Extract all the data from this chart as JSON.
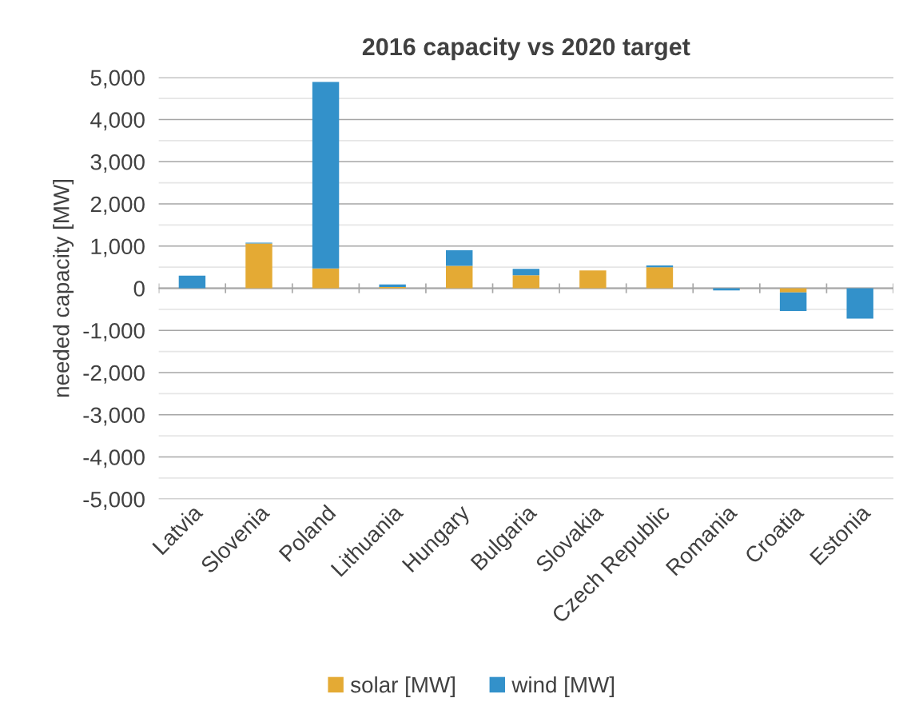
{
  "chart_data": {
    "type": "bar",
    "title": "2016 capacity vs 2020 target",
    "ylabel": "needed capacity [MW]",
    "categories": [
      "Latvia",
      "Slovenia",
      "Poland",
      "Lithuania",
      "Hungary",
      "Bulgaria",
      "Slovakia",
      "Czech Republic",
      "Romania",
      "Croatia",
      "Estonia"
    ],
    "stacked": true,
    "series": [
      {
        "name": "solar [MW]",
        "color": "#e4aa34",
        "values": [
          0,
          1060,
          470,
          30,
          530,
          310,
          420,
          500,
          0,
          -100,
          0
        ]
      },
      {
        "name": "wind [MW]",
        "color": "#3391ca",
        "values": [
          300,
          20,
          4420,
          60,
          370,
          150,
          0,
          40,
          -50,
          -440,
          -720
        ]
      }
    ],
    "ylim": [
      -5000,
      5000
    ],
    "yticks": [
      {
        "value": -5000,
        "label": "-5,000"
      },
      {
        "value": -4500,
        "label": null
      },
      {
        "value": -4000,
        "label": "-4,000"
      },
      {
        "value": -3500,
        "label": null
      },
      {
        "value": -3000,
        "label": "-3,000"
      },
      {
        "value": -2500,
        "label": null
      },
      {
        "value": -2000,
        "label": "-2,000"
      },
      {
        "value": -1500,
        "label": null
      },
      {
        "value": -1000,
        "label": "-1,000"
      },
      {
        "value": -500,
        "label": null
      },
      {
        "value": 0,
        "label": "0"
      },
      {
        "value": 500,
        "label": null
      },
      {
        "value": 1000,
        "label": "1,000"
      },
      {
        "value": 1500,
        "label": null
      },
      {
        "value": 2000,
        "label": "2,000"
      },
      {
        "value": 2500,
        "label": null
      },
      {
        "value": 3000,
        "label": "3,000"
      },
      {
        "value": 3500,
        "label": null
      },
      {
        "value": 4000,
        "label": "4,000"
      },
      {
        "value": 4500,
        "label": null
      },
      {
        "value": 5000,
        "label": "5,000"
      }
    ],
    "grid": "y",
    "legend": "bottom"
  }
}
